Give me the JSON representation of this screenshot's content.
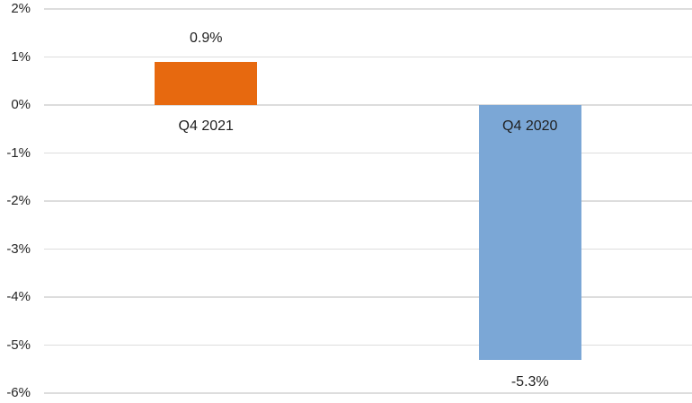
{
  "chart_data": {
    "type": "bar",
    "categories": [
      "Q4 2021",
      "Q4 2020"
    ],
    "values": [
      0.9,
      -5.3
    ],
    "data_labels": [
      "0.9%",
      "-5.3%"
    ],
    "bar_colors": [
      "#E7690F",
      "#7BA7D6"
    ],
    "ylim": [
      -6,
      2
    ],
    "ytick_values": [
      2,
      1,
      0,
      -1,
      -2,
      -3,
      -4,
      -5,
      -6
    ],
    "ytick_labels": [
      "2%",
      "1%",
      "0%",
      "-1%",
      "-2%",
      "-3%",
      "-4%",
      "-5%",
      "-6%"
    ],
    "grid": true,
    "legend": "none",
    "gridline_color": "#DDDDDD",
    "text_color": "#262626",
    "background_color": "#FFFFFF"
  }
}
